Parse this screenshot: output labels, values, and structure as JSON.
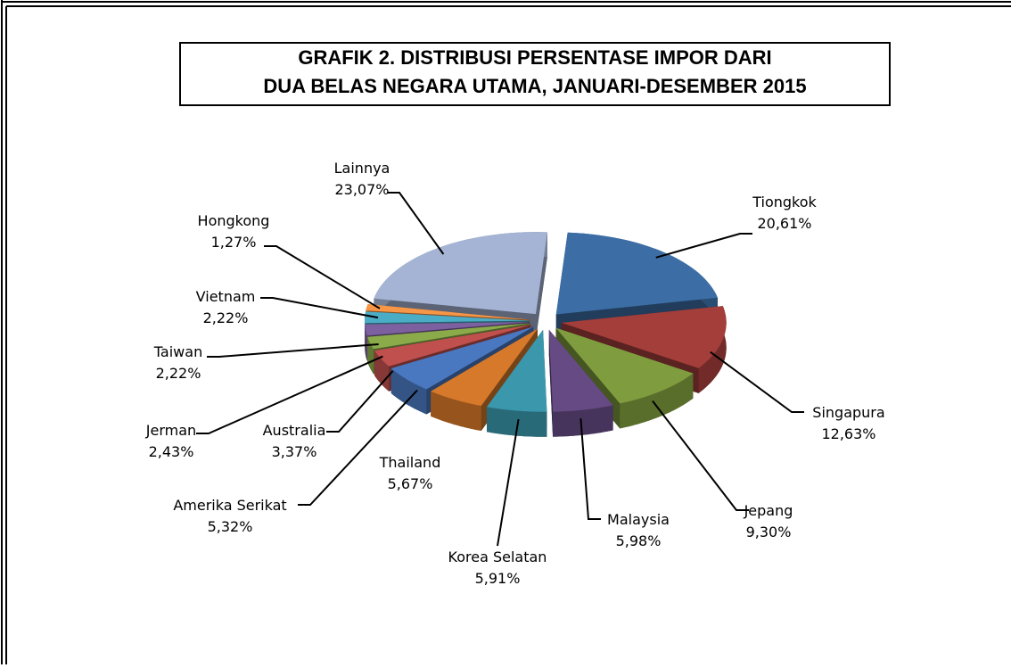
{
  "chart_data": {
    "type": "pie",
    "title": [
      "GRAFIK 2. DISTRIBUSI  PERSENTASE IMPOR DARI",
      "DUA BELAS NEGARA UTAMA, JANUARI-DESEMBER 2015"
    ],
    "categories": [
      "Tiongkok",
      "Singapura",
      "Jepang",
      "Malaysia",
      "Korea Selatan",
      "Thailand",
      "Amerika Serikat",
      "Australia",
      "Jerman",
      "Taiwan",
      "Vietnam",
      "Hongkong",
      "Lainnya"
    ],
    "values": [
      20.61,
      12.63,
      9.3,
      5.98,
      5.91,
      5.67,
      5.32,
      3.37,
      2.43,
      2.22,
      2.22,
      1.27,
      23.07
    ],
    "value_labels": [
      "20,61%",
      "12,63%",
      "9,30%",
      "5,98%",
      "5,91%",
      "5,67%",
      "5,32%",
      "3,37%",
      "2,43%",
      "2,22%",
      "2,22%",
      "1,27%",
      "23,07%"
    ],
    "colors": [
      "#3c6ea5",
      "#a33e3b",
      "#7f9d3e",
      "#664a83",
      "#3a97ac",
      "#d7792a",
      "#4a78c0",
      "#c0504d",
      "#8bab4a",
      "#7d60a0",
      "#4bacc6",
      "#f79646",
      "#a5b4d4"
    ]
  }
}
